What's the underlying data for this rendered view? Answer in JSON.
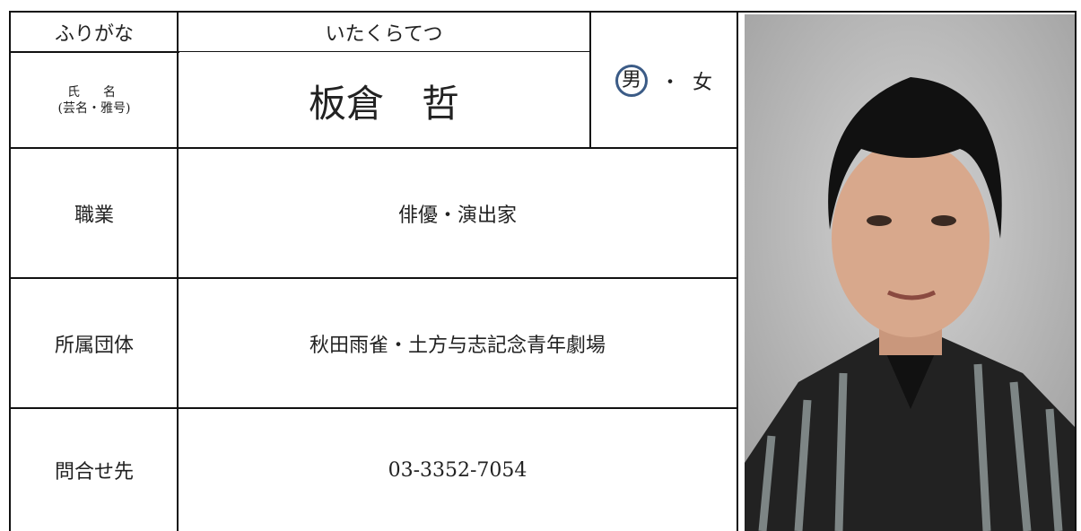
{
  "furigana": {
    "label": "ふりがな",
    "value": "いたくらてつ"
  },
  "name": {
    "label": "氏　名",
    "sublabel": "(芸名・雅号)",
    "value": "板倉　哲"
  },
  "gender": {
    "options": [
      "男",
      "女"
    ],
    "separator": "・"
  },
  "rows": [
    {
      "label": "職業",
      "value": "俳優・演出家"
    },
    {
      "label": "所属団体",
      "value": "秋田雨雀・土方与志記念青年劇場"
    },
    {
      "label": "問合せ先",
      "value": "03-3352-7054"
    }
  ]
}
